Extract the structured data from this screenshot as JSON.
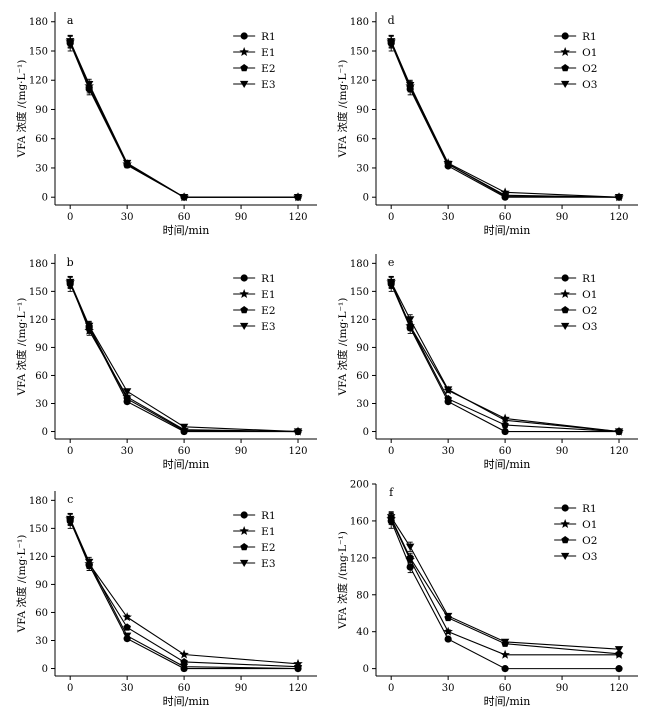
{
  "chart_data": [
    {
      "type": "line",
      "panel": "a",
      "xlabel": "时间/min",
      "ylabel": "VFA 浓度 /(mg·L⁻¹)",
      "x": [
        0,
        10,
        30,
        60,
        120
      ],
      "xticks": [
        0,
        30,
        60,
        90,
        120
      ],
      "xlim": [
        -8,
        130
      ],
      "yticks": [
        0,
        30,
        60,
        90,
        120,
        150,
        180
      ],
      "ylim": [
        -8,
        190
      ],
      "series": [
        {
          "name": "R1",
          "marker": "circle",
          "values": [
            158,
            111,
            33,
            0,
            0
          ],
          "err": [
            8,
            6,
            2,
            0,
            0
          ]
        },
        {
          "name": "E1",
          "marker": "star",
          "values": [
            160,
            114,
            34,
            0,
            0
          ],
          "err": [
            6,
            5,
            2,
            0,
            0
          ]
        },
        {
          "name": "E2",
          "marker": "pentagon",
          "values": [
            159,
            112,
            33,
            0,
            0
          ],
          "err": [
            6,
            5,
            2,
            0,
            0
          ]
        },
        {
          "name": "E3",
          "marker": "triangle-down",
          "values": [
            160,
            116,
            35,
            0,
            0
          ],
          "err": [
            6,
            5,
            2,
            0,
            0
          ]
        }
      ]
    },
    {
      "type": "line",
      "panel": "b",
      "xlabel": "时间/min",
      "ylabel": "VFA 浓度 /(mg·L⁻¹)",
      "x": [
        0,
        10,
        30,
        60,
        120
      ],
      "xticks": [
        0,
        30,
        60,
        90,
        120
      ],
      "xlim": [
        -8,
        130
      ],
      "yticks": [
        0,
        30,
        60,
        90,
        120,
        150,
        180
      ],
      "ylim": [
        -8,
        190
      ],
      "series": [
        {
          "name": "R1",
          "marker": "circle",
          "values": [
            158,
            111,
            32,
            0,
            0
          ],
          "err": [
            8,
            6,
            2,
            0,
            0
          ]
        },
        {
          "name": "E1",
          "marker": "star",
          "values": [
            160,
            108,
            37,
            2,
            0
          ],
          "err": [
            6,
            5,
            2,
            0,
            0
          ]
        },
        {
          "name": "E2",
          "marker": "pentagon",
          "values": [
            159,
            112,
            35,
            1,
            0
          ],
          "err": [
            6,
            5,
            2,
            0,
            0
          ]
        },
        {
          "name": "E3",
          "marker": "triangle-down",
          "values": [
            160,
            113,
            43,
            5,
            0
          ],
          "err": [
            6,
            5,
            2,
            0,
            0
          ]
        }
      ]
    },
    {
      "type": "line",
      "panel": "c",
      "xlabel": "时间/min",
      "ylabel": "VFA 浓度 /(mg·L⁻¹)",
      "x": [
        0,
        10,
        30,
        60,
        120
      ],
      "xticks": [
        0,
        30,
        60,
        90,
        120
      ],
      "xlim": [
        -8,
        130
      ],
      "yticks": [
        0,
        30,
        60,
        90,
        120,
        150,
        180
      ],
      "ylim": [
        -8,
        190
      ],
      "series": [
        {
          "name": "R1",
          "marker": "circle",
          "values": [
            158,
            111,
            32,
            0,
            0
          ],
          "err": [
            8,
            6,
            2,
            0,
            0
          ]
        },
        {
          "name": "E1",
          "marker": "star",
          "values": [
            160,
            112,
            55,
            15,
            5
          ],
          "err": [
            6,
            5,
            2,
            0,
            0
          ]
        },
        {
          "name": "E2",
          "marker": "pentagon",
          "values": [
            159,
            110,
            44,
            7,
            2
          ],
          "err": [
            6,
            5,
            2,
            0,
            0
          ]
        },
        {
          "name": "E3",
          "marker": "triangle-down",
          "values": [
            160,
            114,
            35,
            2,
            0
          ],
          "err": [
            6,
            5,
            2,
            0,
            0
          ]
        }
      ]
    },
    {
      "type": "line",
      "panel": "d",
      "xlabel": "时间/min",
      "ylabel": "VFA 浓度 /(mg·L⁻¹)",
      "x": [
        0,
        10,
        30,
        60,
        120
      ],
      "xticks": [
        0,
        30,
        60,
        90,
        120
      ],
      "xlim": [
        -8,
        130
      ],
      "yticks": [
        0,
        30,
        60,
        90,
        120,
        150,
        180
      ],
      "ylim": [
        -8,
        190
      ],
      "series": [
        {
          "name": "R1",
          "marker": "circle",
          "values": [
            158,
            111,
            32,
            0,
            0
          ],
          "err": [
            8,
            6,
            2,
            0,
            0
          ]
        },
        {
          "name": "O1",
          "marker": "star",
          "values": [
            160,
            114,
            35,
            5,
            0
          ],
          "err": [
            6,
            5,
            2,
            0,
            0
          ]
        },
        {
          "name": "O2",
          "marker": "pentagon",
          "values": [
            159,
            113,
            34,
            2,
            0
          ],
          "err": [
            6,
            5,
            2,
            0,
            0
          ]
        },
        {
          "name": "O3",
          "marker": "triangle-down",
          "values": [
            160,
            115,
            34,
            1,
            0
          ],
          "err": [
            6,
            5,
            2,
            0,
            0
          ]
        }
      ]
    },
    {
      "type": "line",
      "panel": "e",
      "xlabel": "时间/min",
      "ylabel": "VFA 浓度 /(mg·L⁻¹)",
      "x": [
        0,
        10,
        30,
        60,
        120
      ],
      "xticks": [
        0,
        30,
        60,
        90,
        120
      ],
      "xlim": [
        -8,
        130
      ],
      "yticks": [
        0,
        30,
        60,
        90,
        120,
        150,
        180
      ],
      "ylim": [
        -8,
        190
      ],
      "series": [
        {
          "name": "R1",
          "marker": "circle",
          "values": [
            158,
            111,
            32,
            0,
            0
          ],
          "err": [
            8,
            6,
            2,
            0,
            0
          ]
        },
        {
          "name": "O1",
          "marker": "star",
          "values": [
            160,
            113,
            44,
            14,
            0
          ],
          "err": [
            6,
            5,
            2,
            0,
            0
          ]
        },
        {
          "name": "O2",
          "marker": "pentagon",
          "values": [
            159,
            113,
            35,
            7,
            0
          ],
          "err": [
            6,
            5,
            2,
            0,
            0
          ]
        },
        {
          "name": "O3",
          "marker": "triangle-down",
          "values": [
            160,
            120,
            45,
            12,
            0
          ],
          "err": [
            6,
            5,
            2,
            0,
            0
          ]
        }
      ]
    },
    {
      "type": "line",
      "panel": "f",
      "xlabel": "时间/min",
      "ylabel": "VFA 浓度 /(mg·L⁻¹)",
      "x": [
        0,
        10,
        30,
        60,
        120
      ],
      "xticks": [
        0,
        30,
        60,
        90,
        120
      ],
      "xlim": [
        -8,
        130
      ],
      "yticks": [
        0,
        40,
        80,
        120,
        160,
        200
      ],
      "ylim": [
        -8,
        200
      ],
      "series": [
        {
          "name": "R1",
          "marker": "circle",
          "values": [
            160,
            110,
            32,
            0,
            0
          ],
          "err": [
            8,
            6,
            2,
            0,
            0
          ]
        },
        {
          "name": "O1",
          "marker": "star",
          "values": [
            162,
            118,
            40,
            15,
            15
          ],
          "err": [
            6,
            5,
            2,
            0,
            0
          ]
        },
        {
          "name": "O2",
          "marker": "pentagon",
          "values": [
            163,
            120,
            55,
            27,
            16
          ],
          "err": [
            6,
            5,
            2,
            0,
            0
          ]
        },
        {
          "name": "O3",
          "marker": "triangle-down",
          "values": [
            164,
            132,
            57,
            29,
            21
          ],
          "err": [
            6,
            5,
            2,
            0,
            0
          ]
        }
      ]
    }
  ]
}
